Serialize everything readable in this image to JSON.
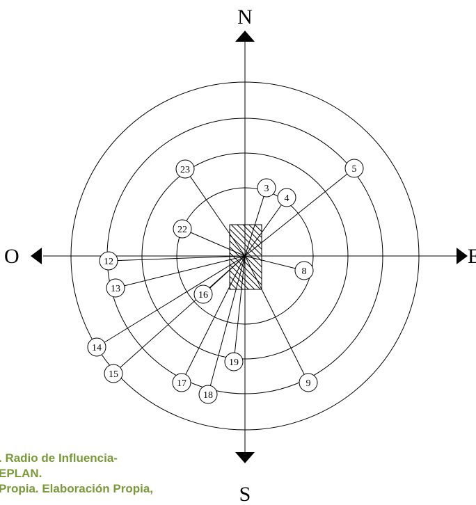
{
  "directions": {
    "north": "N",
    "south": "S",
    "west": "O",
    "east": "E"
  },
  "nodes": [
    "23",
    "5",
    "3",
    "4",
    "22",
    "12",
    "13",
    "16",
    "8",
    "14",
    "15",
    "19",
    "17",
    "18",
    "9"
  ],
  "caption": [
    ". Radio de Influencia-",
    "EPLAN.",
    "Propia. Elaboración Propia,"
  ]
}
